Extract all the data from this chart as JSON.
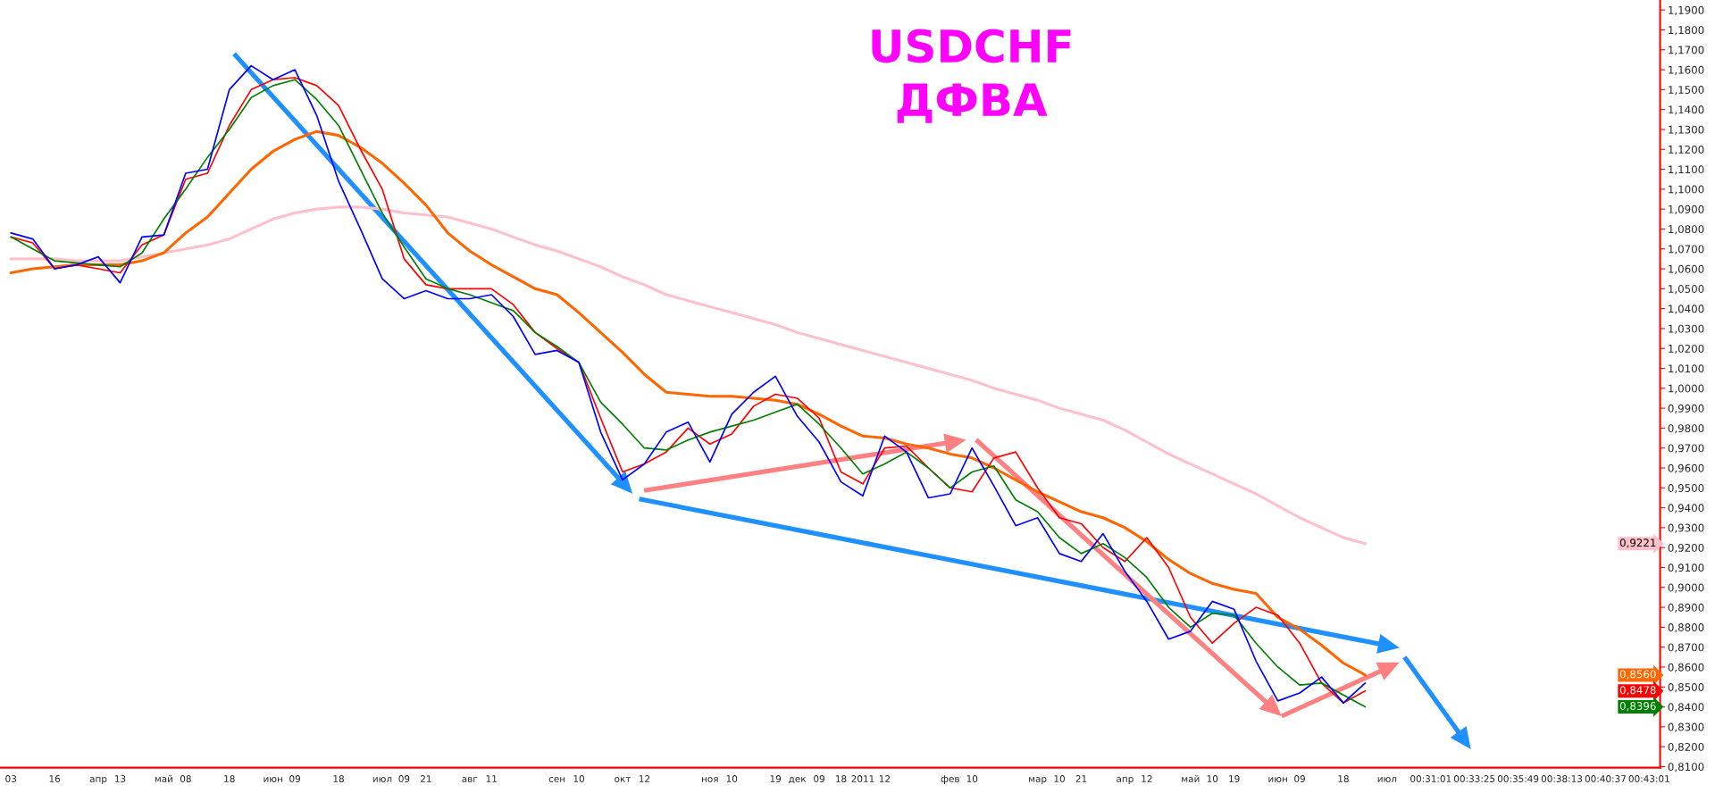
{
  "chart_data": {
    "type": "line",
    "title": "USDCHF",
    "subtitle": "ДФВА",
    "categories": [
      "03",
      null,
      "16",
      null,
      "апр",
      "13",
      null,
      "май",
      "08",
      null,
      "18",
      null,
      "июн",
      "09",
      null,
      "18",
      null,
      "июл",
      "09",
      "21",
      null,
      "авг",
      "11",
      null,
      null,
      "сен",
      "10",
      null,
      "окт",
      "12",
      null,
      null,
      "ноя",
      "10",
      null,
      "19",
      "дек",
      "09",
      "18",
      "2011",
      "12",
      null,
      null,
      "фев",
      "10",
      null,
      null,
      "мар",
      "10",
      "21",
      null,
      "апр",
      "12",
      null,
      "май",
      "10",
      "19",
      null,
      "июн",
      "09",
      null,
      "18",
      null,
      "июл",
      null,
      "00:31:01",
      null,
      "00:33:25",
      null,
      "00:35:49",
      null,
      "00:38:13",
      null,
      "00:40:37",
      null,
      "00:43:01"
    ],
    "ylim": [
      0.8095,
      1.195
    ],
    "yticks": [
      {
        "value": 0.81,
        "label": "0,8100"
      },
      {
        "value": 0.82,
        "label": "0,8200"
      },
      {
        "value": 0.83,
        "label": "0,8300"
      },
      {
        "value": 0.84,
        "label": "0,8400"
      },
      {
        "value": 0.85,
        "label": "0,8500"
      },
      {
        "value": 0.86,
        "label": "0,8600"
      },
      {
        "value": 0.87,
        "label": "0,8700"
      },
      {
        "value": 0.88,
        "label": "0,8800"
      },
      {
        "value": 0.89,
        "label": "0,8900"
      },
      {
        "value": 0.9,
        "label": "0,9000"
      },
      {
        "value": 0.91,
        "label": "0,9100"
      },
      {
        "value": 0.92,
        "label": "0,9200"
      },
      {
        "value": 0.93,
        "label": "0,9300"
      },
      {
        "value": 0.94,
        "label": "0,9400"
      },
      {
        "value": 0.95,
        "label": "0,9500"
      },
      {
        "value": 0.96,
        "label": "0,9600"
      },
      {
        "value": 0.97,
        "label": "0,9700"
      },
      {
        "value": 0.98,
        "label": "0,9800"
      },
      {
        "value": 0.99,
        "label": "0,9900"
      },
      {
        "value": 1.0,
        "label": "1,0000"
      },
      {
        "value": 1.01,
        "label": "1,0100"
      },
      {
        "value": 1.02,
        "label": "1,0200"
      },
      {
        "value": 1.03,
        "label": "1,0300"
      },
      {
        "value": 1.04,
        "label": "1,0400"
      },
      {
        "value": 1.05,
        "label": "1,0500"
      },
      {
        "value": 1.06,
        "label": "1,0600"
      },
      {
        "value": 1.07,
        "label": "1,0700"
      },
      {
        "value": 1.08,
        "label": "1,0800"
      },
      {
        "value": 1.09,
        "label": "1,0900"
      },
      {
        "value": 1.1,
        "label": "1,1000"
      },
      {
        "value": 1.11,
        "label": "1,1100"
      },
      {
        "value": 1.12,
        "label": "1,1200"
      },
      {
        "value": 1.13,
        "label": "1,1300"
      },
      {
        "value": 1.14,
        "label": "1,1400"
      },
      {
        "value": 1.15,
        "label": "1,1500"
      },
      {
        "value": 1.16,
        "label": "1,1600"
      },
      {
        "value": 1.17,
        "label": "1,1700"
      },
      {
        "value": 1.18,
        "label": "1,1800"
      },
      {
        "value": 1.19,
        "label": "1,1900"
      }
    ],
    "grid": false,
    "marker": "none",
    "line_style": "solid",
    "series": [
      {
        "color": "#ffc0cb",
        "values": [
          1.065,
          1.065,
          1.065,
          1.064,
          1.064,
          1.064,
          1.066,
          1.068,
          1.07,
          1.072,
          1.075,
          1.08,
          1.085,
          1.088,
          1.09,
          1.091,
          1.091,
          1.09,
          1.088,
          1.087,
          1.086,
          1.083,
          1.08,
          1.076,
          1.072,
          1.069,
          1.065,
          1.061,
          1.056,
          1.052,
          1.047,
          1.044,
          1.041,
          1.038,
          1.035,
          1.032,
          1.028,
          1.025,
          1.022,
          1.019,
          1.016,
          1.013,
          1.01,
          1.007,
          1.004,
          1.0,
          0.997,
          0.994,
          0.99,
          0.987,
          0.984,
          0.979,
          0.973,
          0.967,
          0.962,
          0.957,
          0.952,
          0.947,
          0.941,
          0.935,
          0.93,
          0.925,
          0.922,
          null,
          null,
          null,
          null,
          null,
          null,
          null,
          null,
          null,
          null,
          null,
          null,
          null
        ]
      },
      {
        "color": "#ff6600",
        "values": [
          1.058,
          1.06,
          1.061,
          1.062,
          1.062,
          1.062,
          1.064,
          1.068,
          1.078,
          1.086,
          1.098,
          1.11,
          1.119,
          1.125,
          1.129,
          1.127,
          1.121,
          1.113,
          1.103,
          1.092,
          1.078,
          1.069,
          1.062,
          1.056,
          1.05,
          1.047,
          1.038,
          1.028,
          1.018,
          1.007,
          0.998,
          0.997,
          0.996,
          0.996,
          0.995,
          0.994,
          0.992,
          0.987,
          0.981,
          0.976,
          0.975,
          0.972,
          0.97,
          0.967,
          0.965,
          0.96,
          0.954,
          0.948,
          0.943,
          0.938,
          0.935,
          0.93,
          0.923,
          0.914,
          0.907,
          0.902,
          0.899,
          0.897,
          0.885,
          0.879,
          0.871,
          0.862,
          0.856,
          null,
          null,
          null,
          null,
          null,
          null,
          null,
          null,
          null,
          null,
          null,
          null,
          null
        ]
      },
      {
        "color": "#ff0000",
        "values": [
          1.076,
          1.073,
          1.06,
          1.062,
          1.06,
          1.058,
          1.072,
          1.077,
          1.105,
          1.108,
          1.132,
          1.15,
          1.155,
          1.156,
          1.152,
          1.142,
          1.12,
          1.1,
          1.065,
          1.052,
          1.05,
          1.05,
          1.05,
          1.042,
          1.028,
          1.02,
          1.013,
          0.985,
          0.958,
          0.962,
          0.968,
          0.98,
          0.972,
          0.977,
          0.991,
          0.997,
          0.995,
          0.985,
          0.958,
          0.952,
          0.97,
          0.971,
          0.96,
          0.95,
          0.948,
          0.965,
          0.968,
          0.95,
          0.935,
          0.932,
          0.92,
          0.913,
          0.925,
          0.91,
          0.885,
          0.872,
          0.882,
          0.89,
          0.886,
          0.872,
          0.852,
          0.842,
          0.848,
          null,
          null,
          null,
          null,
          null,
          null,
          null,
          null,
          null,
          null,
          null,
          null,
          null
        ]
      },
      {
        "color": "#008000",
        "values": [
          1.076,
          1.07,
          1.064,
          1.063,
          1.062,
          1.061,
          1.068,
          1.085,
          1.1,
          1.116,
          1.13,
          1.146,
          1.152,
          1.155,
          1.145,
          1.132,
          1.11,
          1.088,
          1.071,
          1.055,
          1.05,
          1.047,
          1.043,
          1.039,
          1.028,
          1.021,
          1.013,
          0.993,
          0.982,
          0.97,
          0.969,
          0.974,
          0.978,
          0.981,
          0.984,
          0.988,
          0.992,
          0.982,
          0.97,
          0.957,
          0.962,
          0.968,
          0.96,
          0.95,
          0.958,
          0.961,
          0.944,
          0.938,
          0.925,
          0.917,
          0.922,
          0.915,
          0.905,
          0.89,
          0.88,
          0.887,
          0.886,
          0.872,
          0.86,
          0.851,
          0.852,
          0.846,
          0.84,
          null,
          null,
          null,
          null,
          null,
          null,
          null,
          null,
          null,
          null,
          null,
          null,
          null
        ]
      },
      {
        "color": "#0000ff",
        "values": [
          1.078,
          1.075,
          1.06,
          1.062,
          1.066,
          1.053,
          1.076,
          1.077,
          1.108,
          1.11,
          1.15,
          1.162,
          1.155,
          1.16,
          1.137,
          1.104,
          1.08,
          1.055,
          1.045,
          1.049,
          1.045,
          1.045,
          1.047,
          1.036,
          1.017,
          1.019,
          1.013,
          0.978,
          0.954,
          0.962,
          0.978,
          0.983,
          0.963,
          0.987,
          0.998,
          1.006,
          0.986,
          0.973,
          0.953,
          0.946,
          0.976,
          0.968,
          0.945,
          0.947,
          0.97,
          0.951,
          0.931,
          0.935,
          0.917,
          0.913,
          0.927,
          0.908,
          0.893,
          0.874,
          0.878,
          0.893,
          0.889,
          0.863,
          0.843,
          0.847,
          0.855,
          0.842,
          0.852,
          null,
          null,
          null,
          null,
          null,
          null,
          null,
          null,
          null,
          null,
          null,
          null,
          null
        ]
      }
    ],
    "annotations": [
      "0,9221",
      "0,8560",
      "0,8478",
      "0,8396"
    ]
  }
}
